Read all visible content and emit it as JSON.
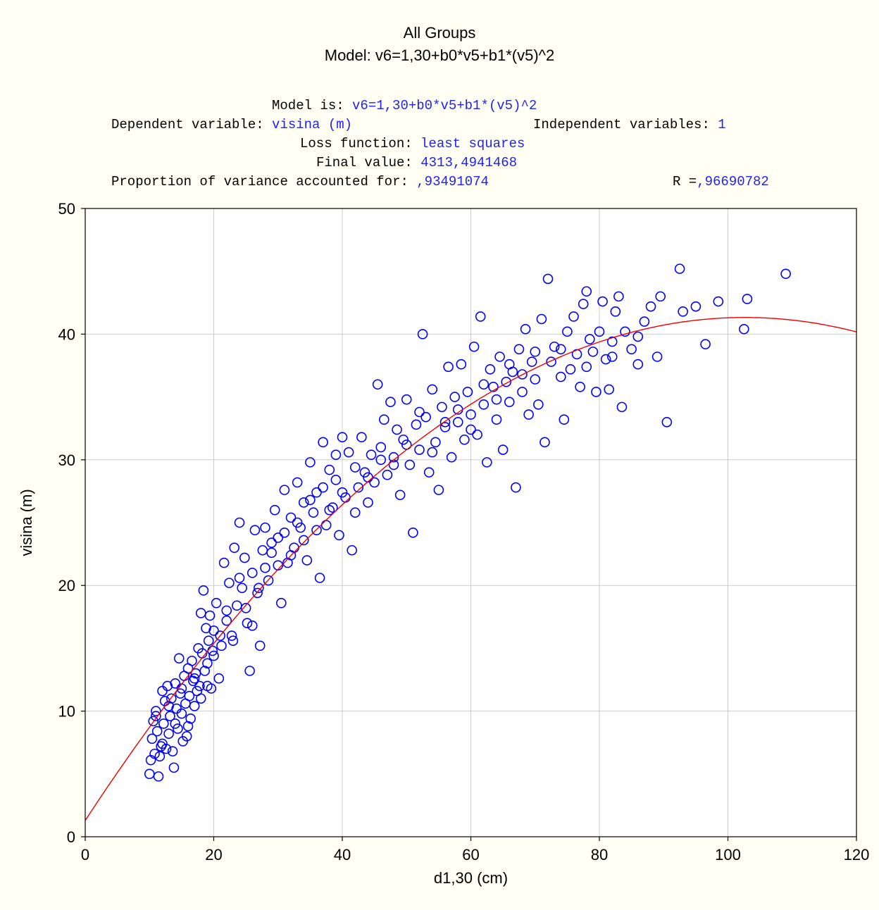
{
  "header": {
    "title": "All Groups",
    "subtitle": "Model:  v6=1,30+b0*v5+b1*(v5)^2"
  },
  "info": {
    "model_label": "Model is: ",
    "model_value": "v6=1,30+b0*v5+b1*(v5)^2",
    "dep_label": "Dependent variable: ",
    "dep_value": "visina (m)",
    "indep_label": "Independent variables: ",
    "indep_value": "1",
    "loss_label": "Loss function: ",
    "loss_value": "least squares",
    "final_label": "Final value: ",
    "final_value": "4313,4941468",
    "prop_label": "Proportion of variance accounted for: ",
    "prop_value": ",93491074",
    "r_label": "R =",
    "r_value": ",96690782"
  },
  "colors": {
    "background": "#FFFFF4",
    "plot_bg": "#FFFFFF",
    "points": "#0000FF",
    "fit_line": "#EE0000",
    "info_values": "#2222EE",
    "grid": "#CCCCCC"
  },
  "chart_data": {
    "type": "scatter",
    "xlabel": "d1,30 (cm)",
    "ylabel": "visina (m)",
    "xlim": [
      0,
      120
    ],
    "ylim": [
      0,
      50
    ],
    "xticks": [
      0,
      20,
      40,
      60,
      80,
      100,
      120
    ],
    "yticks": [
      0,
      10,
      20,
      30,
      40,
      50
    ],
    "grid": true,
    "marker": "open-circle",
    "fit": {
      "intercept": 1.3,
      "b0": 0.78,
      "b1": -0.0038,
      "x_range": [
        0,
        120
      ]
    },
    "series": [
      {
        "points": [
          [
            10.0,
            5.0
          ],
          [
            10.2,
            6.1
          ],
          [
            10.4,
            7.8
          ],
          [
            10.6,
            9.2
          ],
          [
            10.8,
            6.6
          ],
          [
            11.0,
            10.0
          ],
          [
            11.2,
            8.4
          ],
          [
            11.4,
            4.8
          ],
          [
            11.6,
            6.4
          ],
          [
            11.8,
            7.2
          ],
          [
            12.0,
            11.6
          ],
          [
            12.2,
            9.0
          ],
          [
            12.4,
            10.8
          ],
          [
            12.6,
            7.0
          ],
          [
            12.8,
            12.0
          ],
          [
            13.0,
            8.2
          ],
          [
            13.2,
            9.6
          ],
          [
            13.4,
            11.0
          ],
          [
            13.6,
            6.8
          ],
          [
            13.8,
            5.5
          ],
          [
            14.0,
            12.2
          ],
          [
            14.2,
            10.2
          ],
          [
            14.4,
            8.6
          ],
          [
            14.6,
            14.2
          ],
          [
            14.8,
            11.4
          ],
          [
            15.0,
            9.8
          ],
          [
            15.2,
            7.6
          ],
          [
            15.4,
            12.8
          ],
          [
            15.6,
            10.6
          ],
          [
            15.8,
            8.0
          ],
          [
            16.0,
            13.4
          ],
          [
            16.2,
            11.2
          ],
          [
            16.4,
            9.4
          ],
          [
            16.6,
            14.0
          ],
          [
            16.8,
            12.4
          ],
          [
            17.0,
            10.4
          ],
          [
            17.2,
            13.0
          ],
          [
            17.4,
            11.6
          ],
          [
            17.6,
            15.0
          ],
          [
            17.8,
            12.0
          ],
          [
            18.0,
            17.8
          ],
          [
            18.2,
            14.6
          ],
          [
            18.4,
            19.6
          ],
          [
            18.6,
            13.2
          ],
          [
            18.8,
            16.6
          ],
          [
            19.0,
            12.0
          ],
          [
            19.2,
            15.6
          ],
          [
            19.4,
            17.6
          ],
          [
            19.6,
            11.8
          ],
          [
            19.8,
            14.8
          ],
          [
            20.0,
            16.4
          ],
          [
            20.4,
            18.6
          ],
          [
            20.8,
            12.6
          ],
          [
            21.2,
            15.2
          ],
          [
            21.6,
            21.8
          ],
          [
            22.0,
            17.2
          ],
          [
            22.4,
            20.2
          ],
          [
            22.8,
            16.0
          ],
          [
            23.2,
            23.0
          ],
          [
            23.6,
            18.4
          ],
          [
            24.0,
            25.0
          ],
          [
            24.4,
            19.8
          ],
          [
            24.8,
            22.2
          ],
          [
            25.2,
            17.0
          ],
          [
            25.6,
            13.2
          ],
          [
            26.0,
            21.0
          ],
          [
            26.4,
            24.4
          ],
          [
            26.8,
            19.4
          ],
          [
            27.2,
            15.2
          ],
          [
            27.6,
            22.8
          ],
          [
            28.0,
            24.6
          ],
          [
            28.5,
            20.4
          ],
          [
            29.0,
            22.6
          ],
          [
            29.5,
            26.0
          ],
          [
            30.0,
            23.8
          ],
          [
            30.5,
            18.6
          ],
          [
            31.0,
            27.6
          ],
          [
            31.5,
            21.8
          ],
          [
            32.0,
            25.4
          ],
          [
            32.5,
            23.0
          ],
          [
            33.0,
            28.2
          ],
          [
            33.5,
            24.6
          ],
          [
            34.0,
            26.6
          ],
          [
            34.5,
            22.0
          ],
          [
            35.0,
            29.8
          ],
          [
            35.5,
            25.8
          ],
          [
            36.0,
            27.4
          ],
          [
            36.5,
            20.6
          ],
          [
            37.0,
            31.4
          ],
          [
            37.5,
            24.8
          ],
          [
            38.0,
            29.2
          ],
          [
            38.5,
            26.2
          ],
          [
            39.0,
            28.4
          ],
          [
            39.5,
            24.0
          ],
          [
            40.0,
            31.8
          ],
          [
            40.5,
            27.0
          ],
          [
            41.0,
            30.6
          ],
          [
            41.5,
            22.8
          ],
          [
            42.0,
            29.4
          ],
          [
            42.5,
            27.8
          ],
          [
            43.0,
            31.8
          ],
          [
            43.5,
            29.0
          ],
          [
            44.0,
            26.6
          ],
          [
            44.5,
            30.4
          ],
          [
            45.0,
            28.2
          ],
          [
            45.5,
            36.0
          ],
          [
            46.0,
            31.0
          ],
          [
            46.5,
            33.2
          ],
          [
            47.0,
            28.8
          ],
          [
            47.5,
            34.6
          ],
          [
            48.0,
            30.2
          ],
          [
            48.5,
            32.4
          ],
          [
            49.0,
            27.2
          ],
          [
            49.5,
            31.6
          ],
          [
            50.0,
            34.8
          ],
          [
            50.5,
            29.6
          ],
          [
            51.0,
            24.2
          ],
          [
            51.5,
            32.8
          ],
          [
            52.0,
            30.8
          ],
          [
            52.5,
            40.0
          ],
          [
            53.0,
            33.4
          ],
          [
            53.5,
            29.0
          ],
          [
            54.0,
            35.6
          ],
          [
            54.5,
            31.4
          ],
          [
            55.0,
            27.6
          ],
          [
            55.5,
            34.2
          ],
          [
            56.0,
            32.6
          ],
          [
            56.5,
            37.4
          ],
          [
            57.0,
            30.2
          ],
          [
            57.5,
            35.0
          ],
          [
            58.0,
            33.0
          ],
          [
            58.5,
            37.6
          ],
          [
            59.0,
            31.6
          ],
          [
            59.5,
            35.4
          ],
          [
            60.0,
            33.6
          ],
          [
            60.5,
            39.0
          ],
          [
            61.0,
            32.0
          ],
          [
            61.5,
            41.4
          ],
          [
            62.0,
            34.4
          ],
          [
            62.5,
            29.8
          ],
          [
            63.0,
            37.2
          ],
          [
            63.5,
            35.8
          ],
          [
            64.0,
            33.2
          ],
          [
            64.5,
            38.2
          ],
          [
            65.0,
            30.8
          ],
          [
            65.5,
            36.2
          ],
          [
            66.0,
            34.6
          ],
          [
            66.5,
            37.0
          ],
          [
            67.0,
            27.8
          ],
          [
            67.5,
            38.8
          ],
          [
            68.0,
            35.4
          ],
          [
            68.5,
            40.4
          ],
          [
            69.0,
            33.6
          ],
          [
            69.5,
            37.8
          ],
          [
            70.0,
            36.4
          ],
          [
            70.5,
            34.4
          ],
          [
            71.0,
            41.2
          ],
          [
            71.5,
            31.4
          ],
          [
            72.0,
            44.4
          ],
          [
            72.5,
            37.8
          ],
          [
            73.0,
            39.0
          ],
          [
            74.0,
            36.6
          ],
          [
            74.5,
            33.2
          ],
          [
            75.0,
            40.2
          ],
          [
            75.5,
            37.2
          ],
          [
            76.0,
            41.4
          ],
          [
            76.5,
            38.4
          ],
          [
            77.0,
            35.8
          ],
          [
            77.5,
            42.4
          ],
          [
            78.0,
            43.4
          ],
          [
            78.5,
            39.6
          ],
          [
            79.0,
            38.6
          ],
          [
            79.5,
            35.4
          ],
          [
            80.0,
            40.2
          ],
          [
            80.5,
            42.6
          ],
          [
            81.0,
            38.0
          ],
          [
            81.5,
            35.6
          ],
          [
            82.0,
            38.2
          ],
          [
            82.5,
            41.8
          ],
          [
            83.0,
            43.0
          ],
          [
            83.5,
            34.2
          ],
          [
            84.0,
            40.2
          ],
          [
            85.0,
            38.8
          ],
          [
            86.0,
            37.6
          ],
          [
            87.0,
            41.0
          ],
          [
            88.0,
            42.2
          ],
          [
            89.0,
            38.2
          ],
          [
            89.5,
            43.0
          ],
          [
            90.5,
            33.0
          ],
          [
            92.5,
            45.2
          ],
          [
            93.0,
            41.8
          ],
          [
            95.0,
            42.2
          ],
          [
            96.5,
            39.2
          ],
          [
            98.5,
            42.6
          ],
          [
            102.5,
            40.4
          ],
          [
            103.0,
            42.8
          ],
          [
            109.0,
            44.8
          ],
          [
            11.0,
            9.6
          ],
          [
            12.0,
            7.4
          ],
          [
            13.0,
            10.4
          ],
          [
            14.0,
            9.0
          ],
          [
            15.0,
            11.8
          ],
          [
            16.0,
            8.8
          ],
          [
            17.0,
            12.6
          ],
          [
            18.0,
            11.0
          ],
          [
            19.0,
            13.8
          ],
          [
            20.0,
            14.4
          ],
          [
            21.0,
            16.0
          ],
          [
            22.0,
            18.0
          ],
          [
            23.0,
            15.6
          ],
          [
            24.0,
            20.6
          ],
          [
            25.0,
            18.2
          ],
          [
            26.0,
            16.8
          ],
          [
            27.0,
            19.8
          ],
          [
            28.0,
            21.4
          ],
          [
            29.0,
            23.4
          ],
          [
            30.0,
            21.6
          ],
          [
            31.0,
            24.2
          ],
          [
            32.0,
            22.4
          ],
          [
            33.0,
            25.0
          ],
          [
            34.0,
            23.6
          ],
          [
            35.0,
            26.8
          ],
          [
            36.0,
            24.4
          ],
          [
            37.0,
            27.8
          ],
          [
            38.0,
            26.0
          ],
          [
            39.0,
            30.4
          ],
          [
            40.0,
            27.4
          ],
          [
            42.0,
            25.8
          ],
          [
            44.0,
            28.6
          ],
          [
            46.0,
            30.0
          ],
          [
            48.0,
            29.6
          ],
          [
            50.0,
            31.2
          ],
          [
            52.0,
            33.8
          ],
          [
            54.0,
            30.6
          ],
          [
            56.0,
            33.0
          ],
          [
            58.0,
            34.0
          ],
          [
            60.0,
            32.4
          ],
          [
            62.0,
            36.0
          ],
          [
            64.0,
            34.8
          ],
          [
            66.0,
            37.6
          ],
          [
            68.0,
            36.8
          ],
          [
            70.0,
            38.6
          ],
          [
            74.0,
            38.8
          ],
          [
            78.0,
            37.4
          ],
          [
            82.0,
            39.4
          ],
          [
            86.0,
            39.8
          ]
        ]
      }
    ]
  }
}
